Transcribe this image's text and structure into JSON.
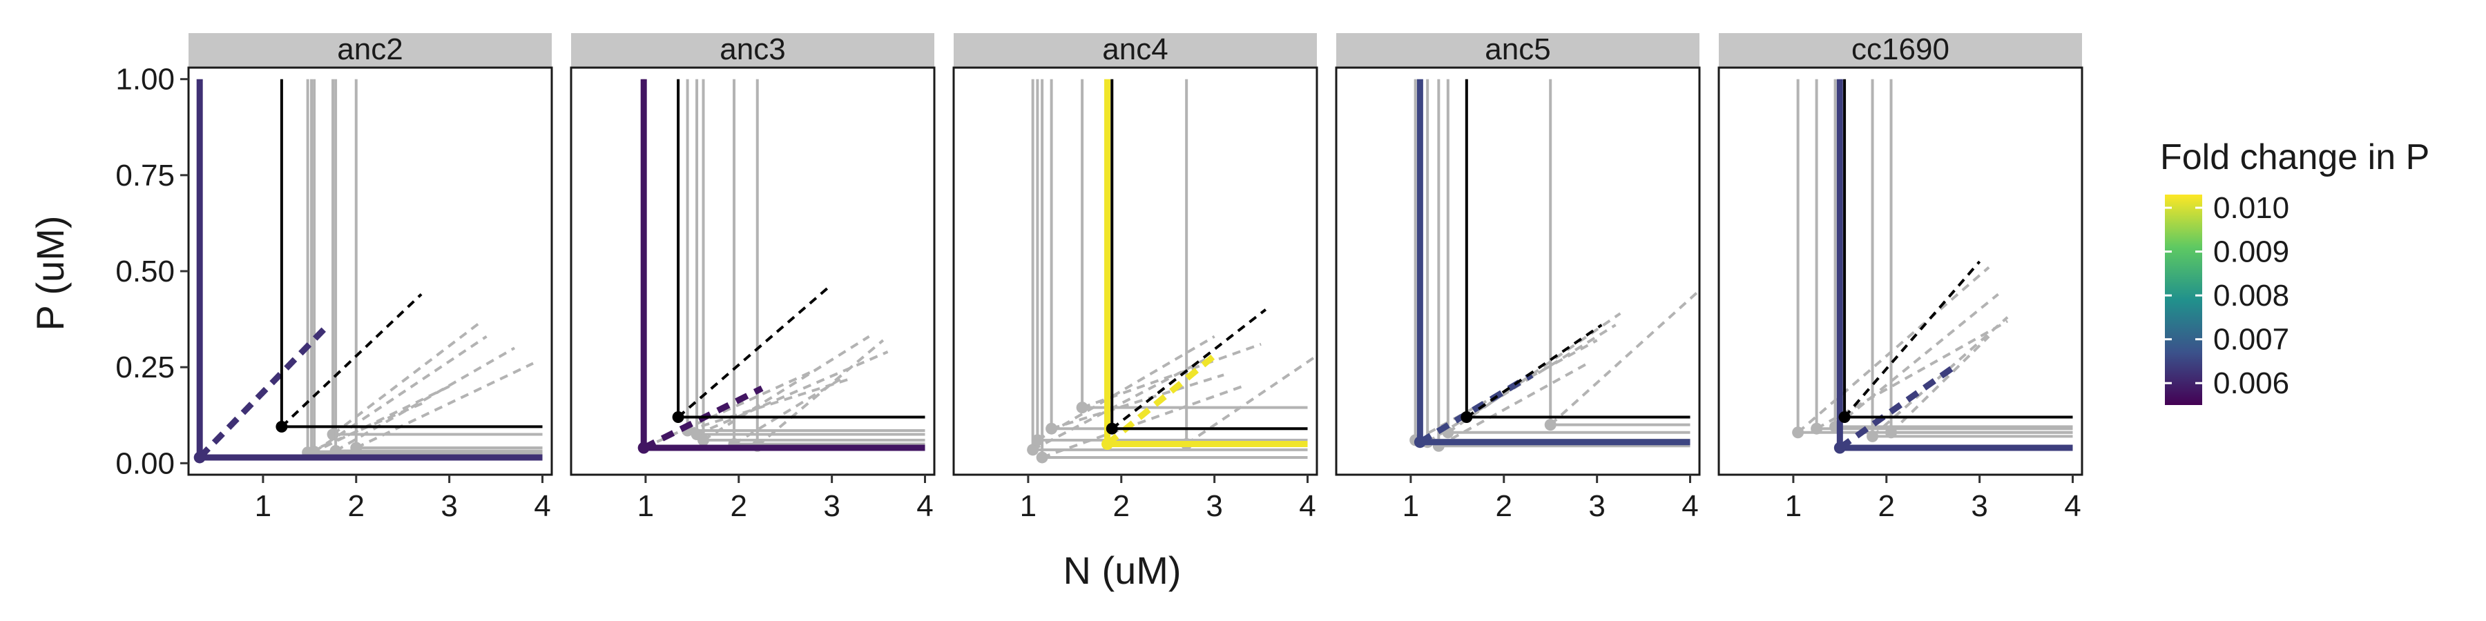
{
  "chart_data": {
    "type": "line",
    "xlabel": "N (uM)",
    "ylabel": "P (uM)",
    "xlim": [
      0.2,
      4.1
    ],
    "ylim": [
      -0.03,
      1.03
    ],
    "x_ticks": [
      "1",
      "2",
      "3",
      "4"
    ],
    "x_tick_values": [
      1,
      2,
      3,
      4
    ],
    "y_ticks": [
      "0.00",
      "0.25",
      "0.50",
      "0.75",
      "1.00"
    ],
    "y_tick_values": [
      0,
      0.25,
      0.5,
      0.75,
      1
    ],
    "top": 1.0,
    "right_end": 4.0,
    "grid": false,
    "legend_placement": "right",
    "legend": {
      "title": "Fold change in P",
      "labels": [
        "0.010",
        "0.009",
        "0.008",
        "0.007",
        "0.006"
      ],
      "values": [
        0.01,
        0.009,
        0.008,
        0.007,
        0.006
      ],
      "range": [
        0.0055,
        0.0103
      ],
      "colors": [
        "#440154",
        "#3b528b",
        "#21918c",
        "#5ec962",
        "#fde725"
      ]
    },
    "colors": {
      "gray": "#b3b3b3",
      "black": "#000000",
      "strip_fill": "#c6c6c6",
      "panel_border": "#1a1a1a"
    },
    "panels": [
      {
        "label": "anc2",
        "gray_lines": [
          {
            "x0": 1.48,
            "y0": 0.028,
            "ray_end": [
              2.75,
              0.16
            ]
          },
          {
            "x0": 1.52,
            "y0": 0.026,
            "ray_end": [
              3.0,
              0.2
            ]
          },
          {
            "x0": 1.55,
            "y0": 0.03,
            "ray_end": [
              3.4,
              0.33
            ]
          },
          {
            "x0": 1.75,
            "y0": 0.075,
            "ray_end": [
              3.35,
              0.37
            ]
          },
          {
            "x0": 1.78,
            "y0": 0.032,
            "ray_end": [
              3.7,
              0.3
            ]
          },
          {
            "x0": 2.0,
            "y0": 0.04,
            "ray_end": [
              3.9,
              0.26
            ]
          }
        ],
        "black_line": {
          "x0": 1.2,
          "y0": 0.095,
          "ray_end": [
            2.7,
            0.44
          ]
        },
        "colored_line": {
          "x0": 0.32,
          "y0": 0.015,
          "ray_end": [
            1.7,
            0.36
          ],
          "value": 0.0062
        }
      },
      {
        "label": "anc3",
        "gray_lines": [
          {
            "x0": 0.98,
            "y0": 0.04,
            "ray_end": [
              2.8,
              0.24
            ]
          },
          {
            "x0": 1.45,
            "y0": 0.085,
            "ray_end": [
              3.2,
              0.22
            ]
          },
          {
            "x0": 1.55,
            "y0": 0.075,
            "ray_end": [
              3.6,
              0.29
            ]
          },
          {
            "x0": 1.62,
            "y0": 0.06,
            "ray_end": [
              3.4,
              0.33
            ]
          },
          {
            "x0": 1.95,
            "y0": 0.05,
            "ray_end": [
              3.1,
              0.22
            ]
          },
          {
            "x0": 2.2,
            "y0": 0.045,
            "ray_end": [
              3.55,
              0.32
            ]
          }
        ],
        "black_line": {
          "x0": 1.35,
          "y0": 0.12,
          "ray_end": [
            2.95,
            0.455
          ]
        },
        "colored_line": {
          "x0": 0.98,
          "y0": 0.04,
          "ray_end": [
            2.25,
            0.195
          ],
          "value": 0.0058
        }
      },
      {
        "label": "anc4",
        "gray_lines": [
          {
            "x0": 1.05,
            "y0": 0.035,
            "ray_end": [
              2.9,
              0.27
            ]
          },
          {
            "x0": 1.1,
            "y0": 0.06,
            "ray_end": [
              3.0,
              0.33
            ]
          },
          {
            "x0": 1.15,
            "y0": 0.015,
            "ray_end": [
              3.3,
              0.2
            ]
          },
          {
            "x0": 1.25,
            "y0": 0.09,
            "ray_end": [
              3.1,
              0.23
            ]
          },
          {
            "x0": 1.58,
            "y0": 0.145,
            "ray_end": [
              3.5,
              0.31
            ]
          },
          {
            "x0": 2.7,
            "y0": 0.05,
            "ray_end": [
              4.1,
              0.28
            ]
          }
        ],
        "black_line": {
          "x0": 1.9,
          "y0": 0.09,
          "ray_end": [
            3.55,
            0.4
          ]
        },
        "colored_line": {
          "x0": 1.85,
          "y0": 0.05,
          "ray_end": [
            3.0,
            0.28
          ],
          "value": 0.0102
        }
      },
      {
        "label": "anc5",
        "gray_lines": [
          {
            "x0": 1.05,
            "y0": 0.06,
            "ray_end": [
              3.0,
              0.32
            ]
          },
          {
            "x0": 1.18,
            "y0": 0.055,
            "ray_end": [
              3.2,
              0.36
            ]
          },
          {
            "x0": 1.3,
            "y0": 0.045,
            "ray_end": [
              2.9,
              0.26
            ]
          },
          {
            "x0": 1.4,
            "y0": 0.08,
            "ray_end": [
              3.25,
              0.39
            ]
          },
          {
            "x0": 2.5,
            "y0": 0.1,
            "ray_end": [
              4.1,
              0.45
            ]
          }
        ],
        "black_line": {
          "x0": 1.6,
          "y0": 0.12,
          "ray_end": [
            3.05,
            0.36
          ]
        },
        "colored_line": {
          "x0": 1.1,
          "y0": 0.055,
          "ray_end": [
            2.3,
            0.23
          ],
          "value": 0.0065
        }
      },
      {
        "label": "cc1690",
        "gray_lines": [
          {
            "x0": 1.05,
            "y0": 0.08,
            "ray_end": [
              3.1,
              0.51
            ]
          },
          {
            "x0": 1.25,
            "y0": 0.09,
            "ray_end": [
              3.3,
              0.37
            ]
          },
          {
            "x0": 1.45,
            "y0": 0.095,
            "ray_end": [
              3.2,
              0.44
            ]
          },
          {
            "x0": 1.85,
            "y0": 0.07,
            "ray_end": [
              3.3,
              0.38
            ]
          },
          {
            "x0": 2.05,
            "y0": 0.08,
            "ray_end": [
              3.1,
              0.33
            ]
          }
        ],
        "black_line": {
          "x0": 1.55,
          "y0": 0.12,
          "ray_end": [
            3.0,
            0.525
          ]
        },
        "colored_line": {
          "x0": 1.5,
          "y0": 0.04,
          "ray_end": [
            2.75,
            0.255
          ],
          "value": 0.0064
        }
      }
    ]
  }
}
